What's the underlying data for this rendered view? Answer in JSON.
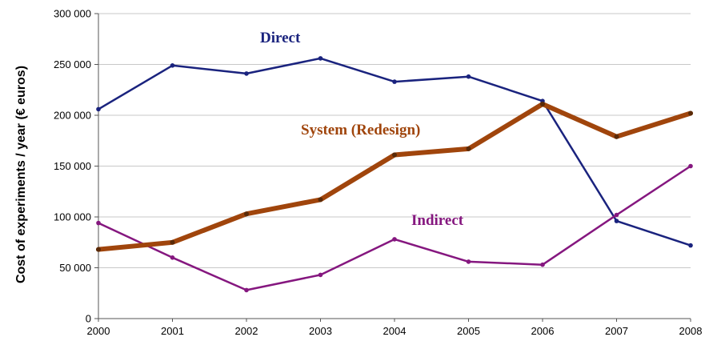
{
  "chart_data": {
    "type": "line",
    "title": "",
    "xlabel": "",
    "ylabel": "Cost of experiments / year (€ euros)",
    "x": [
      2000,
      2001,
      2002,
      2003,
      2004,
      2005,
      2006,
      2007,
      2008
    ],
    "ylim": [
      0,
      300000
    ],
    "yticks": [
      0,
      50000,
      100000,
      150000,
      200000,
      250000,
      300000
    ],
    "ytick_labels": [
      "0",
      "50 000",
      "100 000",
      "150 000",
      "200 000",
      "250 000",
      "300 000"
    ],
    "grid": true,
    "legend": "inline labels",
    "series": [
      {
        "name": "Direct",
        "color": "#1a237e",
        "values": [
          206000,
          249000,
          241000,
          256000,
          233000,
          238000,
          214000,
          96000,
          72000
        ]
      },
      {
        "name": "System (Redesign)",
        "color": "#a0450c",
        "values": [
          68000,
          75000,
          103000,
          117000,
          161000,
          167000,
          211000,
          179000,
          202000
        ]
      },
      {
        "name": "Indirect",
        "color": "#85177f",
        "values": [
          94000,
          60000,
          28000,
          43000,
          78000,
          56000,
          53000,
          102000,
          150000
        ]
      }
    ]
  }
}
